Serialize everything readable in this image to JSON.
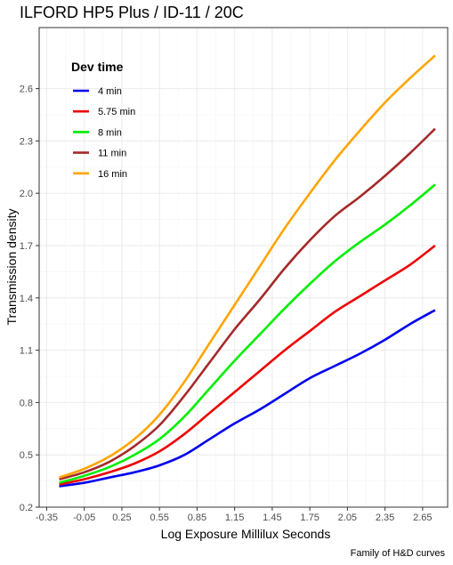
{
  "chart_data": {
    "type": "line",
    "title": "ILFORD HP5 Plus / ID-11 / 20C",
    "xlabel": "Log Exposure Millilux Seconds",
    "ylabel": "Transmission density",
    "caption": "Family of H&D curves",
    "xlim": [
      -0.41,
      2.85
    ],
    "ylim": [
      0.2,
      2.95
    ],
    "x_ticks": [
      "-0.35",
      "-0.05",
      "0.25",
      "0.55",
      "0.85",
      "1.15",
      "1.45",
      "1.75",
      "2.05",
      "2.35",
      "2.65"
    ],
    "y_ticks": [
      "0.2",
      "0.5",
      "0.8",
      "1.1",
      "1.4",
      "1.7",
      "2.0",
      "2.3",
      "2.6"
    ],
    "grid": true,
    "legend": {
      "title": "Dev time",
      "placement": "top-left"
    },
    "series": [
      {
        "name": "4 min",
        "color": "#0000ee",
        "x": [
          -0.25,
          -0.05,
          0.15,
          0.35,
          0.55,
          0.75,
          0.95,
          1.15,
          1.35,
          1.55,
          1.75,
          1.95,
          2.15,
          2.35,
          2.55,
          2.75
        ],
        "y": [
          0.32,
          0.34,
          0.37,
          0.4,
          0.44,
          0.5,
          0.59,
          0.68,
          0.76,
          0.85,
          0.94,
          1.01,
          1.08,
          1.16,
          1.25,
          1.33
        ]
      },
      {
        "name": "5.75 min",
        "color": "#ee0000",
        "x": [
          -0.25,
          -0.05,
          0.15,
          0.35,
          0.55,
          0.75,
          0.95,
          1.15,
          1.35,
          1.55,
          1.75,
          1.95,
          2.15,
          2.35,
          2.55,
          2.75
        ],
        "y": [
          0.33,
          0.36,
          0.4,
          0.45,
          0.52,
          0.62,
          0.74,
          0.86,
          0.98,
          1.1,
          1.21,
          1.32,
          1.41,
          1.5,
          1.59,
          1.7
        ]
      },
      {
        "name": "8 min",
        "color": "#00ee00",
        "x": [
          -0.25,
          -0.05,
          0.15,
          0.35,
          0.55,
          0.75,
          0.95,
          1.15,
          1.35,
          1.55,
          1.75,
          1.95,
          2.15,
          2.35,
          2.55,
          2.75
        ],
        "y": [
          0.34,
          0.38,
          0.43,
          0.5,
          0.59,
          0.72,
          0.88,
          1.04,
          1.19,
          1.34,
          1.48,
          1.61,
          1.72,
          1.82,
          1.93,
          2.05
        ]
      },
      {
        "name": "11 min",
        "color": "#a52a2a",
        "x": [
          -0.25,
          -0.05,
          0.15,
          0.35,
          0.55,
          0.75,
          0.95,
          1.15,
          1.35,
          1.55,
          1.75,
          1.95,
          2.15,
          2.35,
          2.55,
          2.75
        ],
        "y": [
          0.36,
          0.4,
          0.46,
          0.55,
          0.67,
          0.84,
          1.03,
          1.22,
          1.39,
          1.57,
          1.73,
          1.87,
          1.98,
          2.1,
          2.23,
          2.37
        ]
      },
      {
        "name": "16 min",
        "color": "#ffa500",
        "x": [
          -0.25,
          -0.05,
          0.15,
          0.35,
          0.55,
          0.75,
          0.95,
          1.15,
          1.35,
          1.55,
          1.75,
          1.95,
          2.15,
          2.35,
          2.55,
          2.75
        ],
        "y": [
          0.37,
          0.42,
          0.49,
          0.59,
          0.73,
          0.92,
          1.14,
          1.36,
          1.58,
          1.8,
          2.0,
          2.19,
          2.36,
          2.52,
          2.66,
          2.79
        ]
      }
    ]
  }
}
